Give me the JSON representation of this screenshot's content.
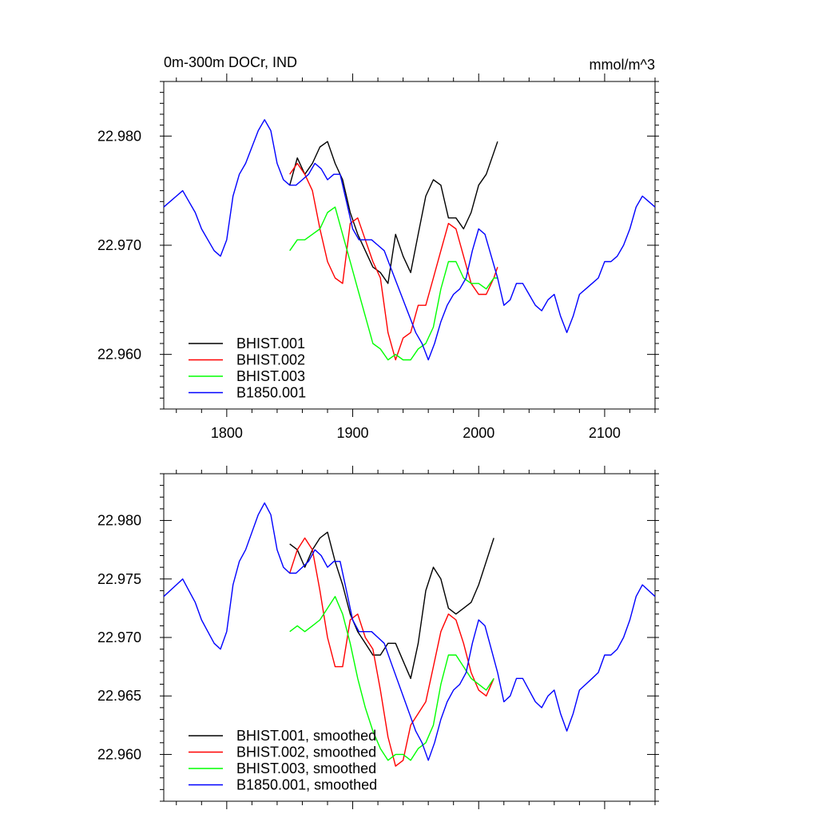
{
  "chart_data": [
    {
      "type": "line",
      "title": "0m-300m DOCr, IND",
      "units": "mmol/m^3",
      "xlim": [
        1750,
        2140
      ],
      "ylim": [
        22.955,
        22.985
      ],
      "xticks": [
        1800,
        1900,
        2000,
        2100
      ],
      "yticks": [
        22.96,
        22.97,
        22.98
      ],
      "ytick_labels": [
        "22.960",
        "22.970",
        "22.980"
      ],
      "show_x_labels": true,
      "grid": false,
      "legend_position": "bottom-left",
      "series": [
        {
          "name": "BHIST.001",
          "color": "#000000",
          "x": [
            1850,
            1856,
            1862,
            1868,
            1874,
            1880,
            1886,
            1892,
            1898,
            1904,
            1910,
            1916,
            1922,
            1928,
            1934,
            1940,
            1946,
            1952,
            1958,
            1964,
            1970,
            1976,
            1982,
            1988,
            1994,
            2000,
            2006,
            2012,
            2015
          ],
          "values": [
            22.9755,
            22.978,
            22.9765,
            22.9775,
            22.979,
            22.9795,
            22.9775,
            22.976,
            22.973,
            22.971,
            22.9695,
            22.968,
            22.9675,
            22.9665,
            22.971,
            22.969,
            22.9675,
            22.971,
            22.9745,
            22.976,
            22.9755,
            22.9725,
            22.9725,
            22.9715,
            22.973,
            22.9755,
            22.9765,
            22.9785,
            22.9795
          ]
        },
        {
          "name": "BHIST.002",
          "color": "#ff0000",
          "x": [
            1850,
            1856,
            1862,
            1868,
            1874,
            1880,
            1886,
            1892,
            1898,
            1904,
            1910,
            1916,
            1922,
            1928,
            1934,
            1940,
            1946,
            1952,
            1958,
            1964,
            1970,
            1976,
            1982,
            1988,
            1994,
            2000,
            2006,
            2012,
            2015
          ],
          "values": [
            22.9765,
            22.9775,
            22.9765,
            22.975,
            22.9715,
            22.9685,
            22.967,
            22.9665,
            22.972,
            22.9725,
            22.9705,
            22.9685,
            22.967,
            22.962,
            22.9595,
            22.9615,
            22.962,
            22.9645,
            22.9645,
            22.967,
            22.9695,
            22.972,
            22.9715,
            22.969,
            22.9665,
            22.9655,
            22.9655,
            22.967,
            22.968
          ]
        },
        {
          "name": "BHIST.003",
          "color": "#00ff00",
          "x": [
            1850,
            1856,
            1862,
            1868,
            1874,
            1880,
            1886,
            1892,
            1898,
            1904,
            1910,
            1916,
            1922,
            1928,
            1934,
            1940,
            1946,
            1952,
            1958,
            1964,
            1970,
            1976,
            1982,
            1988,
            1994,
            2000,
            2006,
            2012,
            2015
          ],
          "values": [
            22.9695,
            22.9705,
            22.9705,
            22.971,
            22.9715,
            22.973,
            22.9735,
            22.971,
            22.9685,
            22.966,
            22.9635,
            22.961,
            22.9605,
            22.9595,
            22.96,
            22.9595,
            22.9595,
            22.9605,
            22.961,
            22.9625,
            22.966,
            22.9685,
            22.9685,
            22.967,
            22.9665,
            22.9665,
            22.966,
            22.967,
            22.967
          ]
        },
        {
          "name": "B1850.001",
          "color": "#0000ff",
          "x": [
            1750,
            1755,
            1760,
            1765,
            1770,
            1775,
            1780,
            1785,
            1790,
            1795,
            1800,
            1805,
            1810,
            1815,
            1820,
            1825,
            1830,
            1835,
            1840,
            1845,
            1850,
            1855,
            1860,
            1865,
            1870,
            1875,
            1880,
            1885,
            1890,
            1895,
            1900,
            1905,
            1910,
            1915,
            1920,
            1925,
            1930,
            1935,
            1940,
            1945,
            1950,
            1955,
            1960,
            1965,
            1970,
            1975,
            1980,
            1985,
            1990,
            1995,
            2000,
            2005,
            2010,
            2015,
            2020,
            2025,
            2030,
            2035,
            2040,
            2045,
            2050,
            2055,
            2060,
            2065,
            2070,
            2075,
            2080,
            2085,
            2090,
            2095,
            2100,
            2105,
            2110,
            2115,
            2120,
            2125,
            2130,
            2135,
            2140
          ],
          "values": [
            22.9735,
            22.974,
            22.9745,
            22.975,
            22.974,
            22.973,
            22.9715,
            22.9705,
            22.9695,
            22.969,
            22.9705,
            22.9745,
            22.9765,
            22.9775,
            22.979,
            22.9805,
            22.9815,
            22.9805,
            22.9775,
            22.976,
            22.9755,
            22.9755,
            22.976,
            22.9765,
            22.9775,
            22.977,
            22.976,
            22.9765,
            22.9765,
            22.974,
            22.9715,
            22.9705,
            22.9705,
            22.9705,
            22.97,
            22.9695,
            22.968,
            22.9665,
            22.965,
            22.9635,
            22.962,
            22.961,
            22.9595,
            22.961,
            22.963,
            22.9645,
            22.9655,
            22.966,
            22.967,
            22.9695,
            22.9715,
            22.971,
            22.969,
            22.967,
            22.9645,
            22.965,
            22.9665,
            22.9665,
            22.9655,
            22.9645,
            22.964,
            22.965,
            22.9655,
            22.9635,
            22.962,
            22.9635,
            22.9655,
            22.966,
            22.9665,
            22.967,
            22.9685,
            22.9685,
            22.969,
            22.97,
            22.9715,
            22.9735,
            22.9745,
            22.974,
            22.9735
          ]
        }
      ]
    },
    {
      "type": "line",
      "title": "",
      "units": "",
      "xlim": [
        1750,
        2140
      ],
      "ylim": [
        22.956,
        22.984
      ],
      "xticks": [
        1800,
        1900,
        2000,
        2100
      ],
      "yticks": [
        22.96,
        22.965,
        22.97,
        22.975,
        22.98
      ],
      "ytick_labels": [
        "22.960",
        "22.965",
        "22.970",
        "22.975",
        "22.980"
      ],
      "show_x_labels": false,
      "grid": false,
      "legend_position": "bottom-left",
      "series": [
        {
          "name": "BHIST.001, smoothed",
          "color": "#000000",
          "x": [
            1850,
            1856,
            1862,
            1868,
            1874,
            1880,
            1886,
            1892,
            1898,
            1904,
            1910,
            1916,
            1922,
            1928,
            1934,
            1940,
            1946,
            1952,
            1958,
            1964,
            1970,
            1976,
            1982,
            1988,
            1994,
            2000,
            2006,
            2012
          ],
          "values": [
            22.978,
            22.9775,
            22.976,
            22.9775,
            22.9785,
            22.979,
            22.9765,
            22.9745,
            22.972,
            22.9705,
            22.9695,
            22.9685,
            22.9685,
            22.9695,
            22.9695,
            22.968,
            22.9665,
            22.9695,
            22.974,
            22.976,
            22.975,
            22.9725,
            22.972,
            22.9725,
            22.973,
            22.9745,
            22.9765,
            22.9785
          ]
        },
        {
          "name": "BHIST.002, smoothed",
          "color": "#ff0000",
          "x": [
            1850,
            1856,
            1862,
            1868,
            1874,
            1880,
            1886,
            1892,
            1898,
            1904,
            1910,
            1916,
            1922,
            1928,
            1934,
            1940,
            1946,
            1952,
            1958,
            1964,
            1970,
            1976,
            1982,
            1988,
            1994,
            2000,
            2006,
            2012
          ],
          "values": [
            22.9755,
            22.9775,
            22.9785,
            22.9775,
            22.974,
            22.97,
            22.9675,
            22.9675,
            22.9715,
            22.972,
            22.97,
            22.969,
            22.9655,
            22.9615,
            22.959,
            22.9595,
            22.9625,
            22.9635,
            22.9645,
            22.9675,
            22.9705,
            22.972,
            22.9715,
            22.9695,
            22.967,
            22.9655,
            22.965,
            22.9665
          ]
        },
        {
          "name": "BHIST.003, smoothed",
          "color": "#00ff00",
          "x": [
            1850,
            1856,
            1862,
            1868,
            1874,
            1880,
            1886,
            1892,
            1898,
            1904,
            1910,
            1916,
            1922,
            1928,
            1934,
            1940,
            1946,
            1952,
            1958,
            1964,
            1970,
            1976,
            1982,
            1988,
            1994,
            2000,
            2006,
            2012
          ],
          "values": [
            22.9705,
            22.971,
            22.9705,
            22.971,
            22.9715,
            22.9725,
            22.9735,
            22.972,
            22.9695,
            22.9665,
            22.964,
            22.962,
            22.9605,
            22.9595,
            22.96,
            22.96,
            22.9595,
            22.9605,
            22.961,
            22.9625,
            22.966,
            22.9685,
            22.9685,
            22.9675,
            22.9665,
            22.966,
            22.9655,
            22.9665
          ]
        },
        {
          "name": "B1850.001, smoothed",
          "color": "#0000ff",
          "x": [
            1750,
            1755,
            1760,
            1765,
            1770,
            1775,
            1780,
            1785,
            1790,
            1795,
            1800,
            1805,
            1810,
            1815,
            1820,
            1825,
            1830,
            1835,
            1840,
            1845,
            1850,
            1855,
            1860,
            1865,
            1870,
            1875,
            1880,
            1885,
            1890,
            1895,
            1900,
            1905,
            1910,
            1915,
            1920,
            1925,
            1930,
            1935,
            1940,
            1945,
            1950,
            1955,
            1960,
            1965,
            1970,
            1975,
            1980,
            1985,
            1990,
            1995,
            2000,
            2005,
            2010,
            2015,
            2020,
            2025,
            2030,
            2035,
            2040,
            2045,
            2050,
            2055,
            2060,
            2065,
            2070,
            2075,
            2080,
            2085,
            2090,
            2095,
            2100,
            2105,
            2110,
            2115,
            2120,
            2125,
            2130,
            2135,
            2140
          ],
          "values": [
            22.9735,
            22.974,
            22.9745,
            22.975,
            22.974,
            22.973,
            22.9715,
            22.9705,
            22.9695,
            22.969,
            22.9705,
            22.9745,
            22.9765,
            22.9775,
            22.979,
            22.9805,
            22.9815,
            22.9805,
            22.9775,
            22.976,
            22.9755,
            22.9755,
            22.976,
            22.9765,
            22.9775,
            22.977,
            22.976,
            22.9765,
            22.9765,
            22.974,
            22.9715,
            22.9705,
            22.9705,
            22.9705,
            22.97,
            22.9695,
            22.968,
            22.9665,
            22.965,
            22.9635,
            22.962,
            22.961,
            22.9595,
            22.961,
            22.963,
            22.9645,
            22.9655,
            22.966,
            22.967,
            22.9695,
            22.9715,
            22.971,
            22.969,
            22.967,
            22.9645,
            22.965,
            22.9665,
            22.9665,
            22.9655,
            22.9645,
            22.964,
            22.965,
            22.9655,
            22.9635,
            22.962,
            22.9635,
            22.9655,
            22.966,
            22.9665,
            22.967,
            22.9685,
            22.9685,
            22.969,
            22.97,
            22.9715,
            22.9735,
            22.9745,
            22.974,
            22.9735
          ]
        }
      ]
    }
  ]
}
